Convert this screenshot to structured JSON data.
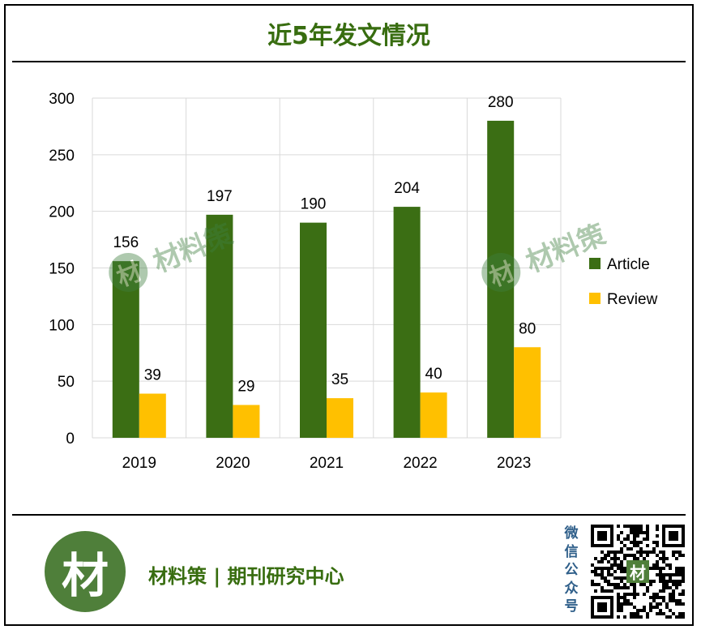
{
  "header": {
    "title": "近5年发文情况"
  },
  "chart_data": {
    "type": "bar",
    "categories": [
      "2019",
      "2020",
      "2021",
      "2022",
      "2023"
    ],
    "series": [
      {
        "name": "Article",
        "values": [
          156,
          197,
          190,
          204,
          280
        ],
        "color": "#3b6e14"
      },
      {
        "name": "Review",
        "values": [
          39,
          29,
          35,
          40,
          80
        ],
        "color": "#ffc000"
      }
    ],
    "yticks": [
      0,
      50,
      100,
      150,
      200,
      250,
      300
    ],
    "ylim": [
      0,
      300
    ],
    "grid": true,
    "legend": "right",
    "data_labels": true
  },
  "watermark": {
    "text": "材料策",
    "icon_char": "材"
  },
  "footer": {
    "logo_char": "材",
    "text": "材料策 | 期刊研究中心",
    "wechat_label": [
      "微",
      "信",
      "公",
      "众",
      "号"
    ],
    "qr_center_char": "材"
  }
}
